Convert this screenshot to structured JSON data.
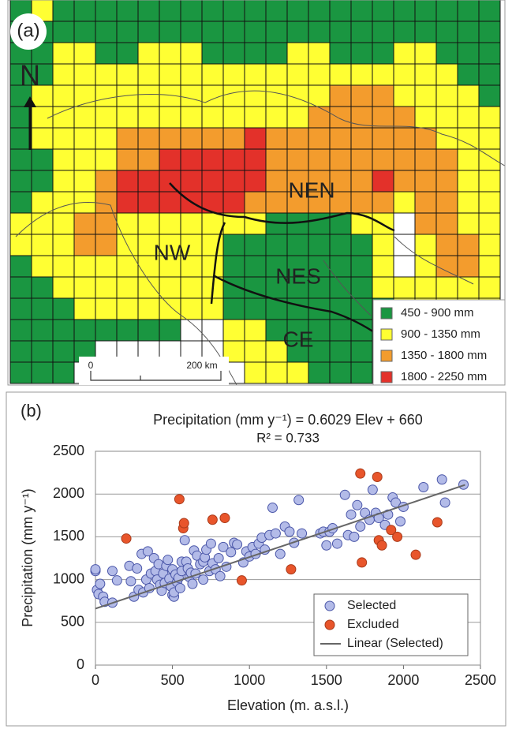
{
  "map": {
    "panel_label": "(a)",
    "north": "N",
    "regions": [
      "NEN",
      "NW",
      "NES",
      "CE"
    ],
    "scale": [
      "0",
      "200 km"
    ],
    "legend": [
      {
        "label": "450 - 900 mm",
        "color": "#1a9641"
      },
      {
        "label": "900 - 1350 mm",
        "color": "#ffff33"
      },
      {
        "label": "1350 - 1800 mm",
        "color": "#f39c2d"
      },
      {
        "label": "1800 - 2250 mm",
        "color": "#e3312a"
      }
    ],
    "cells": [
      "12111111111111111111111",
      "11111111111111111111111",
      "11221122211112211122111",
      "11222222222222222222211",
      "12222222222222233322221",
      "12222222222222333332222",
      "12222333333433333333222",
      "11222334444433333333322",
      "11223444444433333433322",
      "12223444444333333323322",
      "22233222222211112203322",
      "22233222221111111202332",
      "12222222221111111202332",
      "11222222221111111222222",
      "11122222221111111122222",
      "11111111002211111222222",
      "11110000002221111222222",
      "11100000000222111222222"
    ]
  },
  "chart_data": {
    "type": "scatter",
    "panel_label": "(b)",
    "title": "Precipitation (mm y⁻¹)  = 0.6029 Elev + 660",
    "subtitle": "R² = 0.733",
    "x_label": "Elevation (m. a.s.l.)",
    "y_label": "Precipitation (mm y⁻¹)",
    "xlim": [
      0,
      2500
    ],
    "xticks": [
      0,
      500,
      1000,
      1500,
      2000,
      2500
    ],
    "ylim": [
      0,
      2500
    ],
    "yticks": [
      0,
      500,
      1000,
      1500,
      2000,
      2500
    ],
    "grid": true,
    "legend": "lower right",
    "series": [
      {
        "name": "Selected",
        "color": "#b3bbe8",
        "x": [
          0,
          0,
          10,
          20,
          30,
          50,
          60,
          110,
          110,
          140,
          220,
          230,
          250,
          270,
          280,
          300,
          310,
          330,
          340,
          350,
          360,
          380,
          390,
          400,
          410,
          420,
          430,
          440,
          450,
          460,
          470,
          480,
          490,
          500,
          500,
          510,
          510,
          520,
          530,
          540,
          550,
          560,
          560,
          580,
          590,
          600,
          610,
          620,
          630,
          640,
          650,
          660,
          680,
          700,
          700,
          710,
          720,
          740,
          750,
          760,
          780,
          800,
          810,
          830,
          850,
          880,
          900,
          920,
          960,
          980,
          1000,
          1020,
          1040,
          1060,
          1080,
          1100,
          1130,
          1150,
          1170,
          1200,
          1230,
          1260,
          1290,
          1320,
          1340,
          1460,
          1480,
          1500,
          1520,
          1540,
          1570,
          1620,
          1640,
          1660,
          1680,
          1700,
          1720,
          1750,
          1780,
          1800,
          1820,
          1840,
          1880,
          1900,
          1930,
          1950,
          1980,
          2000,
          2130,
          2250,
          2270,
          2390
        ],
        "values": [
          1100,
          1120,
          880,
          830,
          950,
          800,
          740,
          1100,
          730,
          990,
          1160,
          980,
          800,
          1130,
          880,
          1300,
          850,
          1000,
          1330,
          900,
          1070,
          1250,
          1100,
          1000,
          1180,
          940,
          870,
          1070,
          960,
          1160,
          1230,
          1010,
          920,
          1120,
          820,
          800,
          850,
          1060,
          970,
          1020,
          900,
          1210,
          1100,
          1460,
          1210,
          1130,
          1030,
          1080,
          950,
          1340,
          1070,
          1280,
          1180,
          1000,
          1210,
          1260,
          1350,
          1100,
          1420,
          1190,
          1120,
          1250,
          1040,
          1380,
          1150,
          1320,
          1430,
          1410,
          1200,
          1330,
          1270,
          1380,
          1300,
          1420,
          1490,
          1350,
          1520,
          1840,
          1540,
          1300,
          1620,
          1560,
          1430,
          1930,
          1540,
          1540,
          1560,
          1400,
          1560,
          1600,
          1420,
          1990,
          1520,
          1760,
          1500,
          1870,
          1620,
          1780,
          1700,
          2050,
          1780,
          1720,
          1640,
          1760,
          1960,
          1900,
          1680,
          1850,
          2080,
          2170,
          1900,
          2110
        ]
      },
      {
        "name": "Excluded",
        "color": "#e8552b",
        "x": [
          200,
          545,
          570,
          575,
          760,
          840,
          950,
          1270,
          1720,
          1730,
          1830,
          1840,
          1860,
          1920,
          1960,
          2080,
          2220
        ],
        "values": [
          1480,
          1940,
          1600,
          1660,
          1700,
          1720,
          990,
          1120,
          2240,
          1200,
          2200,
          1460,
          1400,
          1580,
          1500,
          1290,
          1670
        ]
      }
    ],
    "trendline": {
      "name": "Linear (Selected)",
      "color": "#666666",
      "x": [
        0,
        2400
      ],
      "values": [
        660,
        2107
      ]
    }
  }
}
